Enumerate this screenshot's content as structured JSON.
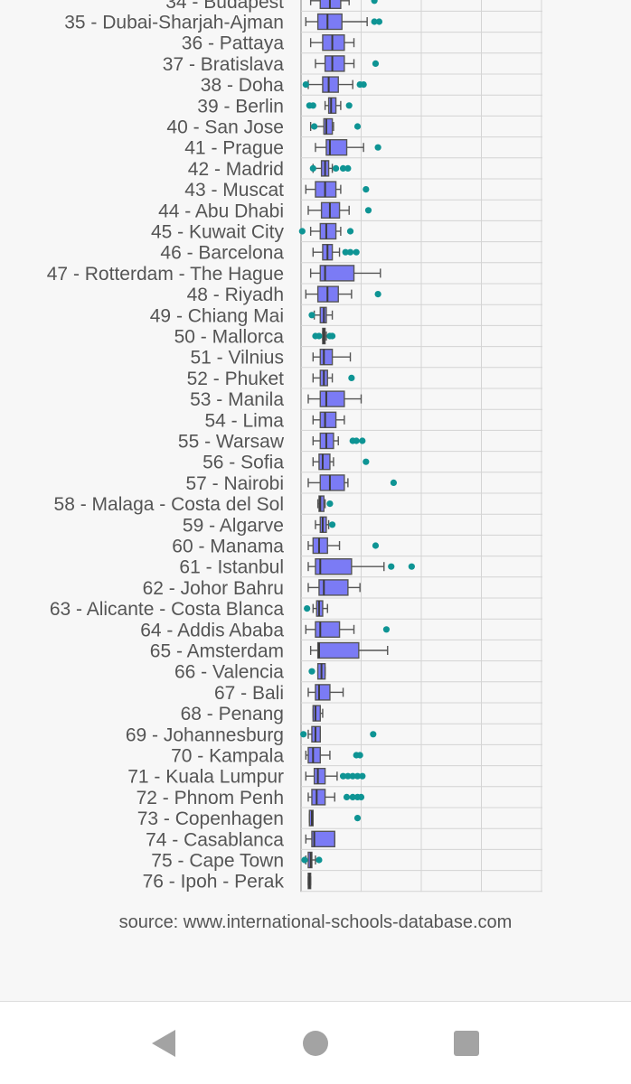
{
  "chart_data": {
    "type": "box",
    "orientation": "horizontal",
    "title": "",
    "xlabel": "",
    "ylabel": "",
    "xlim": [
      0,
      20
    ],
    "grid": true,
    "colors": {
      "box_fill": "#7b7bf5",
      "box_stroke": "#555555",
      "outlier": "#0e9494",
      "grid": "#d4d4d4"
    },
    "partial_top_label": "34 - Budapest",
    "partial_top_stats": {
      "min": 0.8,
      "q1": 1.6,
      "median": 2.4,
      "q3": 3.3,
      "max": 4.0,
      "outliers": [
        6.1
      ]
    },
    "categories": [
      "35 - Dubai-Sharjah-Ajman",
      "36 - Pattaya",
      "37 - Bratislava",
      "38 - Doha",
      "39 - Berlin",
      "40 - San Jose",
      "41 - Prague",
      "42 - Madrid",
      "43 - Muscat",
      "44 - Abu Dhabi",
      "45 - Kuwait City",
      "46 - Barcelona",
      "47 - Rotterdam - The Hague",
      "48 - Riyadh",
      "49 - Chiang Mai",
      "50 - Mallorca",
      "51 - Vilnius",
      "52 - Phuket",
      "53 - Manila",
      "54 - Lima",
      "55 - Warsaw",
      "56 - Sofia",
      "57 - Nairobi",
      "58 - Malaga - Costa del Sol",
      "59 - Algarve",
      "60 - Manama",
      "61 - Istanbul",
      "62 - Johor Bahru",
      "63 - Alicante - Costa Blanca",
      "64 - Addis Ababa",
      "65 - Amsterdam",
      "66 - Valencia",
      "67 - Bali",
      "68 - Penang",
      "69 - Johannesburg",
      "70 - Kampala",
      "71 - Kuala Lumpur",
      "72 - Phnom Penh",
      "73 - Copenhagen",
      "74 - Casablanca",
      "75 - Cape Town",
      "76 - Ipoh - Perak"
    ],
    "series": [
      {
        "min": 0.4,
        "q1": 1.4,
        "median": 2.2,
        "q3": 3.4,
        "max": 5.5,
        "outliers": [
          6.1,
          6.5
        ]
      },
      {
        "min": 0.8,
        "q1": 1.8,
        "median": 2.6,
        "q3": 3.6,
        "max": 4.4,
        "outliers": []
      },
      {
        "min": 1.2,
        "q1": 2.0,
        "median": 2.6,
        "q3": 3.6,
        "max": 4.4,
        "outliers": [
          6.2
        ]
      },
      {
        "min": 0.6,
        "q1": 1.8,
        "median": 2.3,
        "q3": 3.1,
        "max": 4.3,
        "outliers": [
          0.4,
          4.9,
          5.2
        ]
      },
      {
        "min": 2.0,
        "q1": 2.3,
        "median": 2.5,
        "q3": 2.9,
        "max": 3.3,
        "outliers": [
          0.7,
          1.0,
          4.0
        ]
      },
      {
        "min": 0.8,
        "q1": 1.9,
        "median": 2.1,
        "q3": 2.6,
        "max": 2.7,
        "outliers": [
          1.1,
          4.7
        ]
      },
      {
        "min": 1.2,
        "q1": 2.1,
        "median": 2.4,
        "q3": 3.8,
        "max": 5.2,
        "outliers": [
          6.4
        ]
      },
      {
        "min": 1.0,
        "q1": 1.7,
        "median": 2.0,
        "q3": 2.3,
        "max": 2.6,
        "outliers": [
          1.0,
          2.9,
          3.5,
          3.9
        ]
      },
      {
        "min": 0.4,
        "q1": 1.2,
        "median": 2.0,
        "q3": 2.9,
        "max": 3.3,
        "outliers": [
          5.4
        ]
      },
      {
        "min": 0.6,
        "q1": 1.7,
        "median": 2.4,
        "q3": 3.2,
        "max": 4.0,
        "outliers": [
          5.6
        ]
      },
      {
        "min": 0.8,
        "q1": 1.6,
        "median": 2.1,
        "q3": 2.9,
        "max": 3.3,
        "outliers": [
          0.1,
          4.1
        ]
      },
      {
        "min": 1.0,
        "q1": 1.8,
        "median": 2.2,
        "q3": 2.6,
        "max": 3.2,
        "outliers": [
          3.7,
          4.1,
          4.6
        ]
      },
      {
        "min": 0.8,
        "q1": 1.6,
        "median": 2.0,
        "q3": 4.4,
        "max": 6.6,
        "outliers": []
      },
      {
        "min": 0.4,
        "q1": 1.4,
        "median": 2.2,
        "q3": 3.1,
        "max": 4.2,
        "outliers": [
          6.4
        ]
      },
      {
        "min": 1.1,
        "q1": 1.6,
        "median": 1.9,
        "q3": 2.1,
        "max": 2.6,
        "outliers": [
          0.9
        ]
      },
      {
        "min": 1.8,
        "q1": 1.8,
        "median": 1.9,
        "q3": 2.0,
        "max": 2.1,
        "outliers": [
          1.2,
          1.5,
          2.4,
          2.6
        ]
      },
      {
        "min": 1.0,
        "q1": 1.6,
        "median": 1.9,
        "q3": 2.6,
        "max": 4.1,
        "outliers": []
      },
      {
        "min": 1.0,
        "q1": 1.6,
        "median": 1.9,
        "q3": 2.2,
        "max": 2.6,
        "outliers": [
          4.2
        ]
      },
      {
        "min": 0.6,
        "q1": 1.6,
        "median": 2.1,
        "q3": 3.6,
        "max": 5.0,
        "outliers": []
      },
      {
        "min": 1.0,
        "q1": 1.6,
        "median": 2.0,
        "q3": 2.9,
        "max": 3.6,
        "outliers": []
      },
      {
        "min": 1.0,
        "q1": 1.6,
        "median": 2.1,
        "q3": 2.7,
        "max": 3.1,
        "outliers": [
          4.3,
          4.6,
          5.1
        ]
      },
      {
        "min": 1.0,
        "q1": 1.5,
        "median": 1.8,
        "q3": 2.4,
        "max": 2.7,
        "outliers": [
          5.4
        ]
      },
      {
        "min": 0.6,
        "q1": 1.6,
        "median": 2.4,
        "q3": 3.6,
        "max": 3.9,
        "outliers": [
          7.7
        ]
      },
      {
        "min": 1.4,
        "q1": 1.5,
        "median": 1.6,
        "q3": 1.9,
        "max": 2.0,
        "outliers": [
          2.4
        ]
      },
      {
        "min": 1.2,
        "q1": 1.6,
        "median": 1.8,
        "q3": 2.1,
        "max": 2.3,
        "outliers": [
          2.6
        ]
      },
      {
        "min": 0.6,
        "q1": 1.0,
        "median": 1.5,
        "q3": 2.2,
        "max": 3.2,
        "outliers": [
          6.2
        ]
      },
      {
        "min": 0.6,
        "q1": 1.2,
        "median": 1.6,
        "q3": 4.2,
        "max": 6.9,
        "outliers": [
          7.5,
          9.2
        ]
      },
      {
        "min": 0.6,
        "q1": 1.5,
        "median": 1.9,
        "q3": 3.9,
        "max": 4.9,
        "outliers": []
      },
      {
        "min": 1.0,
        "q1": 1.3,
        "median": 1.5,
        "q3": 1.8,
        "max": 2.2,
        "outliers": [
          0.5
        ]
      },
      {
        "min": 0.4,
        "q1": 1.2,
        "median": 1.6,
        "q3": 3.2,
        "max": 4.4,
        "outliers": [
          7.1
        ]
      },
      {
        "min": 0.8,
        "q1": 1.4,
        "median": 1.5,
        "q3": 4.8,
        "max": 7.2,
        "outliers": []
      },
      {
        "min": 1.4,
        "q1": 1.4,
        "median": 1.7,
        "q3": 2.0,
        "max": 2.0,
        "outliers": [
          0.9
        ]
      },
      {
        "min": 0.6,
        "q1": 1.2,
        "median": 1.5,
        "q3": 2.4,
        "max": 3.5,
        "outliers": []
      },
      {
        "min": 1.0,
        "q1": 1.0,
        "median": 1.2,
        "q3": 1.6,
        "max": 1.8,
        "outliers": []
      },
      {
        "min": 0.6,
        "q1": 0.9,
        "median": 1.2,
        "q3": 1.6,
        "max": 1.6,
        "outliers": [
          0.2,
          6.0
        ]
      },
      {
        "min": 0.4,
        "q1": 0.6,
        "median": 1.0,
        "q3": 1.6,
        "max": 2.4,
        "outliers": [
          4.6,
          4.9
        ]
      },
      {
        "min": 0.4,
        "q1": 1.1,
        "median": 1.4,
        "q3": 2.0,
        "max": 3.0,
        "outliers": [
          3.5,
          3.9,
          4.3,
          4.7,
          5.1
        ]
      },
      {
        "min": 0.6,
        "q1": 0.9,
        "median": 1.3,
        "q3": 2.0,
        "max": 2.8,
        "outliers": [
          3.8,
          4.3,
          4.7,
          5.0
        ]
      },
      {
        "min": 0.7,
        "q1": 0.7,
        "median": 0.9,
        "q3": 1.0,
        "max": 1.0,
        "outliers": [
          4.7
        ]
      },
      {
        "min": 0.4,
        "q1": 0.9,
        "median": 1.1,
        "q3": 2.8,
        "max": 2.8,
        "outliers": []
      },
      {
        "min": 0.4,
        "q1": 0.6,
        "median": 0.8,
        "q3": 0.9,
        "max": 1.2,
        "outliers": [
          0.3,
          1.5
        ]
      },
      {
        "min": 0.6,
        "q1": 0.6,
        "median": 0.7,
        "q3": 0.8,
        "max": 0.8,
        "outliers": []
      }
    ]
  },
  "source": "source: www.international-schools-database.com",
  "nav": {
    "back": "back-icon",
    "home": "home-icon",
    "recents": "recents-icon"
  }
}
